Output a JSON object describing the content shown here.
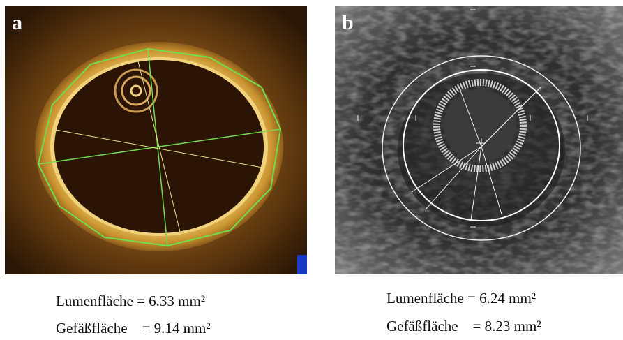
{
  "panels": [
    {
      "label": "a",
      "captions": [
        "Lumenfläche = 6.33 mm²",
        "Gefäßfläche    = 9.14 mm²"
      ]
    },
    {
      "label": "b",
      "captions": [
        "Lumenfläche = 6.24 mm²",
        "Gefäßfläche    = 8.23 mm²"
      ]
    }
  ]
}
